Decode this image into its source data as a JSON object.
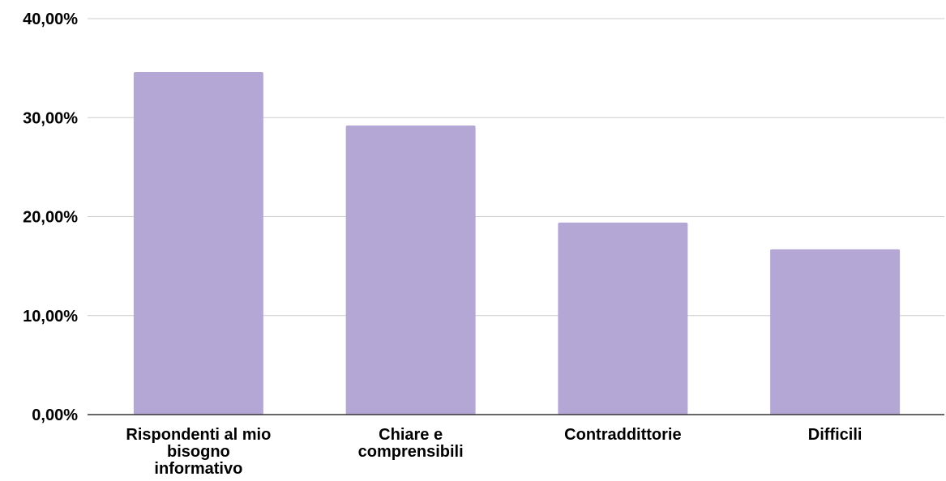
{
  "chart_data": {
    "type": "bar",
    "title": "",
    "xlabel": "",
    "ylabel": "",
    "categories": [
      [
        "Rispondenti al mio",
        "bisogno",
        "informativo"
      ],
      [
        "Chiare e",
        "comprensibili"
      ],
      [
        "Contraddittorie"
      ],
      [
        "Difficili"
      ]
    ],
    "values": [
      34.6,
      29.2,
      19.4,
      16.7
    ],
    "ylim": [
      0,
      40
    ],
    "yticks": [
      {
        "value": 0,
        "label": "0,00%"
      },
      {
        "value": 10,
        "label": "10,00%"
      },
      {
        "value": 20,
        "label": "20,00%"
      },
      {
        "value": 30,
        "label": "30,00%"
      },
      {
        "value": 40,
        "label": "40,00%"
      }
    ],
    "grid": true,
    "legend": "none",
    "colors": {
      "bar": "#b4a7d6",
      "gridline": "#cccccc",
      "baseline": "#333333"
    }
  }
}
